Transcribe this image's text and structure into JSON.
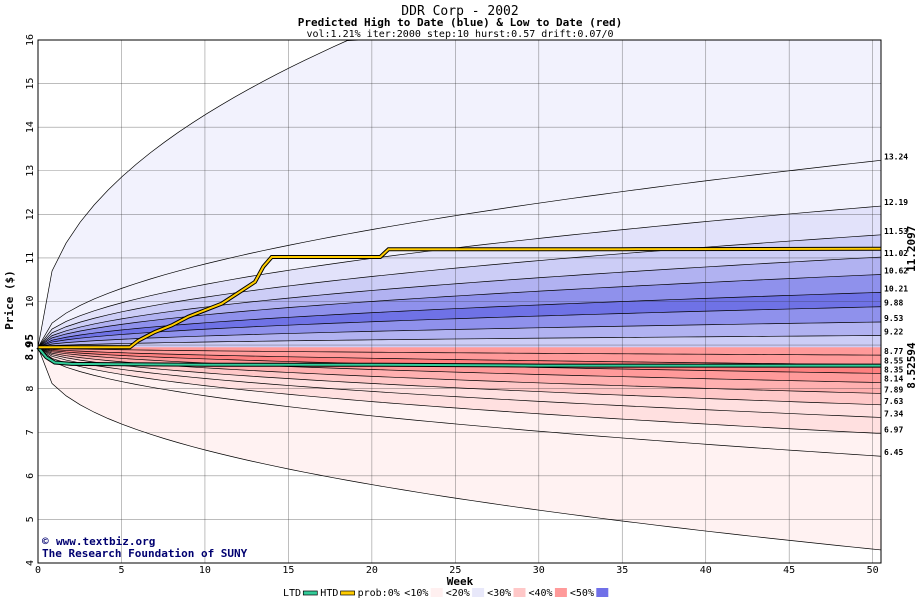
{
  "chart_data": {
    "type": "area",
    "title": "DDR Corp - 2002",
    "subtitle": "Predicted High to Date (blue) &  Low to Date (red)",
    "params": "vol:1.21% iter:2000 step:10 hurst:0.57 drift:0.07/0",
    "xlabel": "Week",
    "ylabel": "Price ($)",
    "xlim": [
      0,
      50.5
    ],
    "ylim": [
      4,
      16
    ],
    "x_ticks": [
      0,
      5,
      10,
      15,
      20,
      25,
      30,
      35,
      40,
      45,
      50
    ],
    "y_ticks": [
      4,
      5,
      6,
      7,
      8,
      9,
      10,
      11,
      12,
      13,
      14,
      15,
      16
    ],
    "start_price": 8.95,
    "start_price_label": "8.95",
    "grid": true,
    "high_quantile_end_values": [
      13.24,
      12.19,
      11.53,
      11.02,
      10.62,
      10.21,
      9.88,
      9.53,
      9.22,
      8.77
    ],
    "low_quantile_end_values": [
      8.55,
      8.35,
      8.14,
      7.89,
      7.63,
      7.34,
      6.97,
      6.45
    ],
    "right_labels": [
      "13.24",
      "12.19",
      "11.53",
      "11.02",
      "10.62",
      "10.21",
      "9.88",
      "9.53",
      "9.22",
      "8.77",
      "8.55",
      "8.35",
      "8.14",
      "7.89",
      "7.63",
      "7.34",
      "6.97",
      "6.45"
    ],
    "high_outer_end": 16,
    "low_outer_end": 4.3,
    "htd_series": {
      "name": "HTD",
      "color": "#ffcc00",
      "x": [
        0,
        5.5,
        6,
        7,
        8,
        9,
        10,
        11,
        12,
        13,
        13.5,
        14,
        20.5,
        21,
        35,
        50.5
      ],
      "y": [
        8.95,
        8.95,
        9.1,
        9.3,
        9.45,
        9.65,
        9.8,
        9.95,
        10.2,
        10.45,
        10.8,
        11.02,
        11.02,
        11.2,
        11.2,
        11.21
      ],
      "end_label": "11.2097"
    },
    "ltd_series": {
      "name": "LTD",
      "color": "#33cc99",
      "x": [
        0,
        0.5,
        1,
        2,
        5,
        10,
        20,
        30,
        40,
        50.5
      ],
      "y": [
        8.95,
        8.72,
        8.6,
        8.57,
        8.56,
        8.55,
        8.55,
        8.53,
        8.53,
        8.53
      ],
      "end_label": "8.52594"
    },
    "colors": {
      "blue_bands": [
        "#f2f2fd",
        "#e2e2fa",
        "#cccdf6",
        "#b1b2f1",
        "#8f91ec",
        "#6f72e6"
      ],
      "red_bands": [
        "#fff2f2",
        "#ffe0e0",
        "#ffc8c8",
        "#ffb0b0",
        "#ff9a9a",
        "#ff8080"
      ],
      "htd_label": "#a08000",
      "ltd_label": "#00a080",
      "credit": "#000070"
    },
    "legend": {
      "items": [
        {
          "label": "LTD",
          "swatch": "line",
          "color": "#33cc99"
        },
        {
          "label": "HTD",
          "swatch": "line",
          "color": "#ffcc00"
        },
        {
          "label": "prob:0%",
          "swatch": "none",
          "color": ""
        },
        {
          "label": "<10%",
          "swatch": "band",
          "color": "#fff0f0"
        },
        {
          "label": "<20%",
          "swatch": "band",
          "color": "#e8e8fa"
        },
        {
          "label": "<30%",
          "swatch": "band",
          "color": "#ffc8c8"
        },
        {
          "label": "<40%",
          "swatch": "band",
          "color": "#ff9a9a"
        },
        {
          "label": "<50%",
          "swatch": "band",
          "color": "#7070e8"
        }
      ]
    },
    "credit_lines": [
      "www.textbiz.org",
      "The Research Foundation of SUNY"
    ],
    "copyright_symbol": "©"
  }
}
